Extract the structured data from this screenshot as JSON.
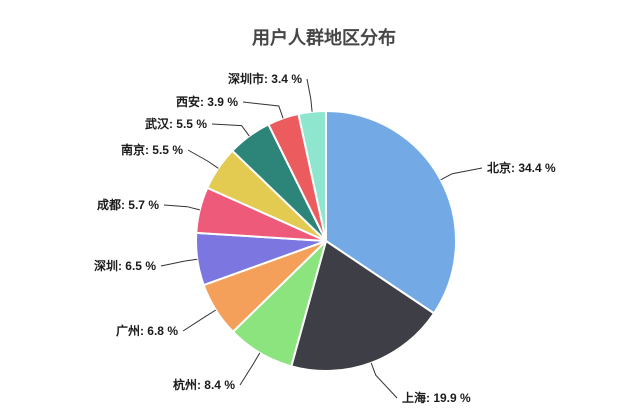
{
  "chart_data": {
    "type": "pie",
    "title": "用户人群地区分布",
    "categories": [
      "北京",
      "上海",
      "杭州",
      "广州",
      "深圳",
      "成都",
      "南京",
      "武汉",
      "西安",
      "深圳市"
    ],
    "values": [
      34.4,
      19.9,
      8.4,
      6.8,
      6.5,
      5.7,
      5.5,
      5.5,
      3.9,
      3.4
    ],
    "unit": "%",
    "label_format": "{name}: {value} %",
    "slice_colors": [
      "#73AAE6",
      "#3E3F46",
      "#8CE47F",
      "#F5A05A",
      "#7B76E0",
      "#EE5A79",
      "#E3CB52",
      "#2D8478",
      "#EC5B5E",
      "#8FE6CE"
    ],
    "legend_position": "none",
    "grid": false,
    "start_angle_deg": 0,
    "direction": "clockwise",
    "total": 100.0
  },
  "colors": {
    "background": "#ffffff",
    "title_text": "#464646",
    "label_text": "#1b1b1b",
    "leader_line": "#333333",
    "slice_border": "#ffffff"
  }
}
